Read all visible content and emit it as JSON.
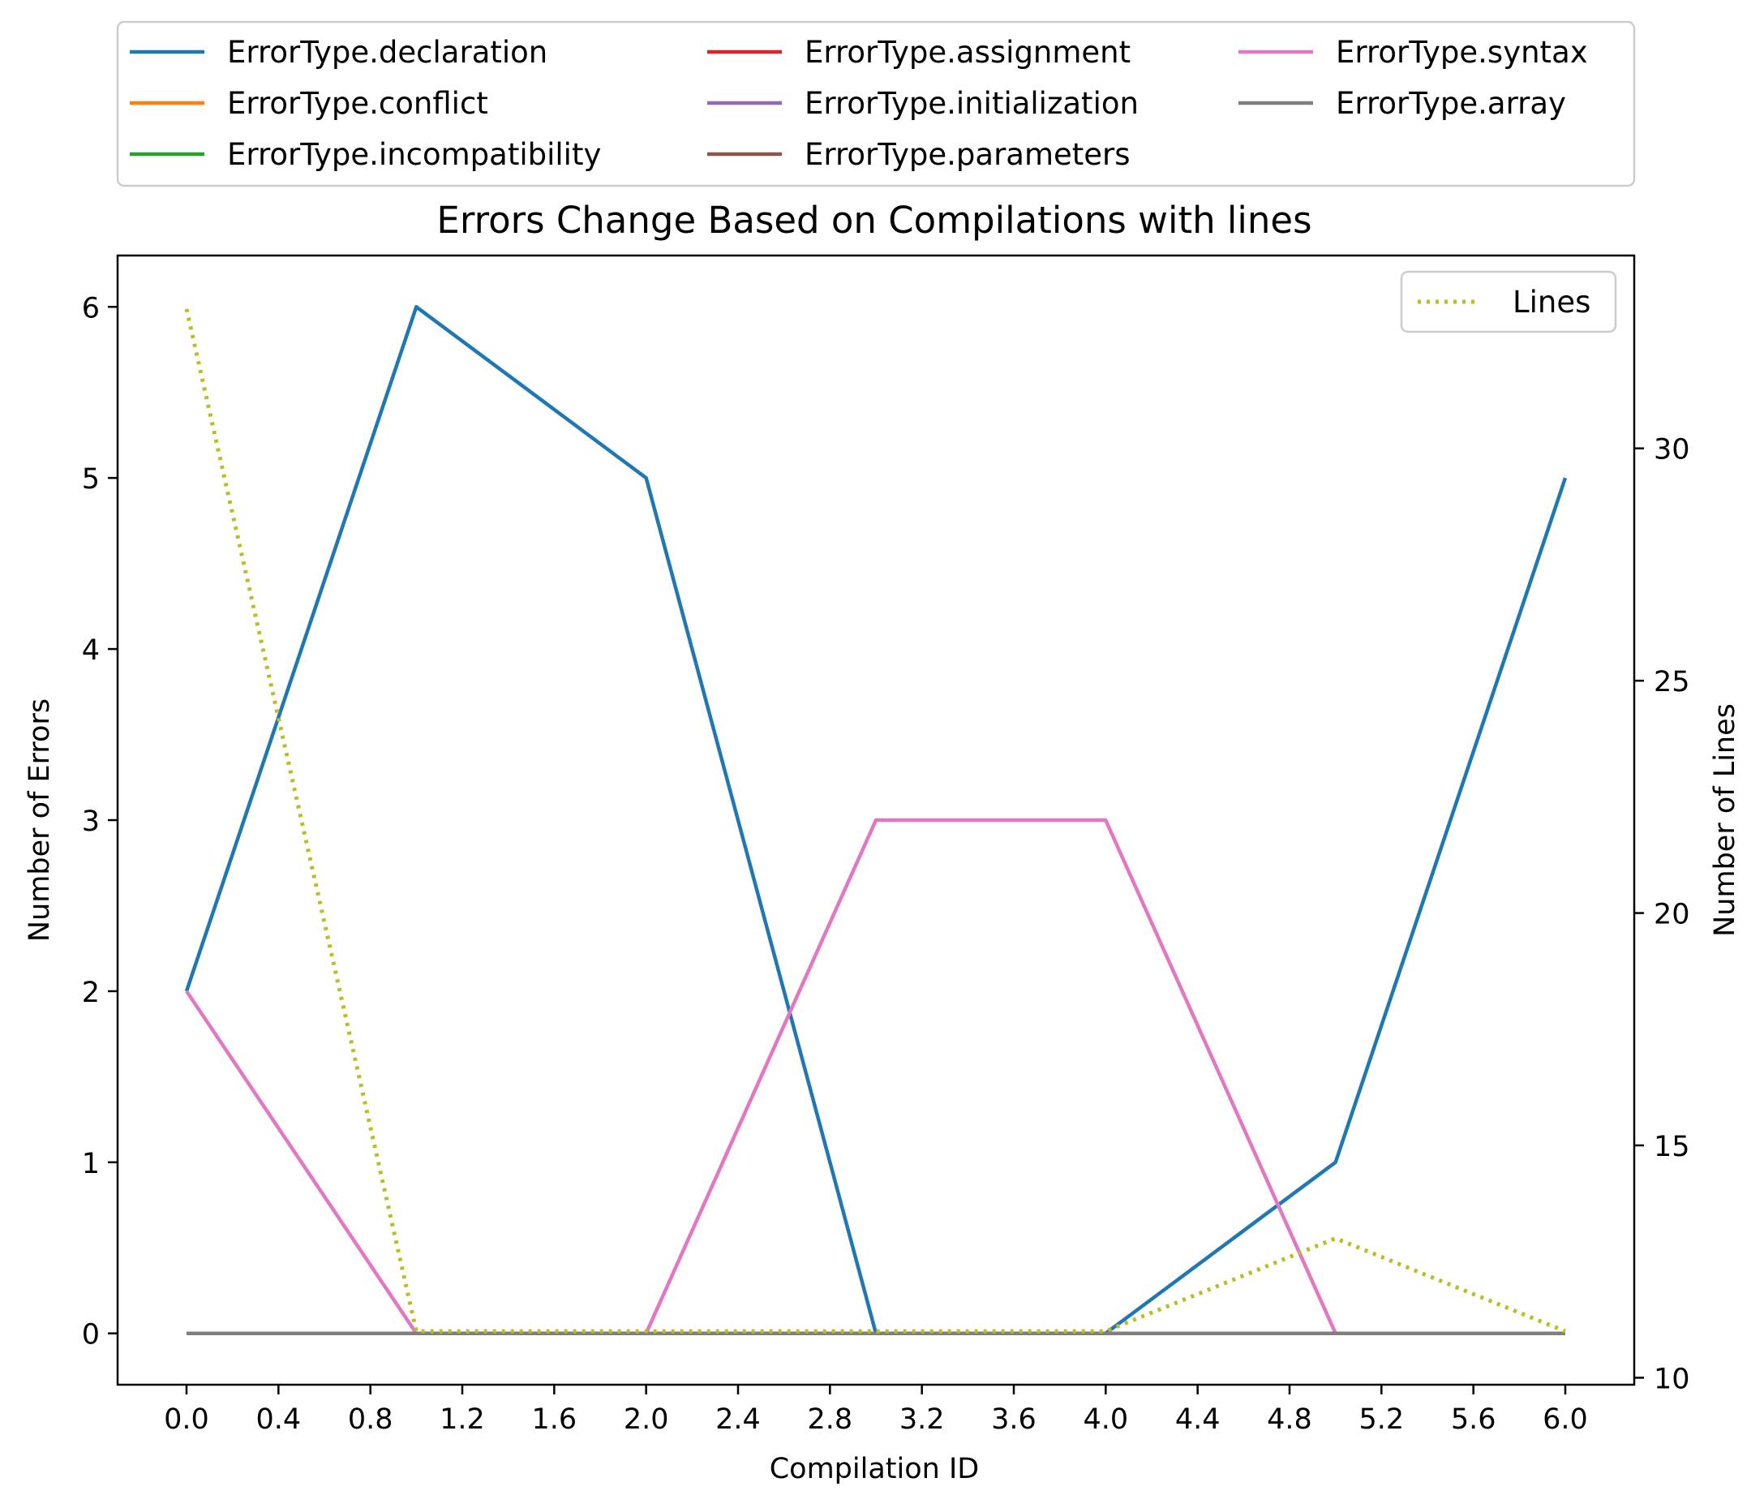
{
  "chart_data": {
    "type": "line",
    "title": "Errors Change Based on Compilations with lines",
    "xlabel": "Compilation ID",
    "ylabel": "Number of Errors",
    "y2label": "Number of Lines",
    "x": [
      0,
      1,
      2,
      3,
      4,
      5,
      6
    ],
    "xlim": [
      -0.3,
      6.3
    ],
    "ylim": [
      -0.3,
      6.3
    ],
    "y2lim": [
      9.85,
      34.15
    ],
    "xticks": [
      "0.0",
      "0.4",
      "0.8",
      "1.2",
      "1.6",
      "2.0",
      "2.4",
      "2.8",
      "3.2",
      "3.6",
      "4.0",
      "4.4",
      "4.8",
      "5.2",
      "5.6",
      "6.0"
    ],
    "yticks": [
      "0",
      "1",
      "2",
      "3",
      "4",
      "5",
      "6"
    ],
    "y2ticks": [
      "10",
      "15",
      "20",
      "25",
      "30"
    ],
    "series": [
      {
        "name": "ErrorType.declaration",
        "color": "#1f77b4",
        "values": [
          2,
          6,
          5,
          0,
          0,
          1,
          5
        ]
      },
      {
        "name": "ErrorType.conflict",
        "color": "#ff7f0e",
        "values": [
          0,
          0,
          0,
          0,
          0,
          0,
          0
        ]
      },
      {
        "name": "ErrorType.incompatibility",
        "color": "#2ca02c",
        "values": [
          0,
          0,
          0,
          0,
          0,
          0,
          0
        ]
      },
      {
        "name": "ErrorType.assignment",
        "color": "#d62728",
        "values": [
          0,
          0,
          0,
          0,
          0,
          0,
          0
        ]
      },
      {
        "name": "ErrorType.initialization",
        "color": "#9467bd",
        "values": [
          0,
          0,
          0,
          0,
          0,
          0,
          0
        ]
      },
      {
        "name": "ErrorType.parameters",
        "color": "#8c564b",
        "values": [
          0,
          0,
          0,
          0,
          0,
          0,
          0
        ]
      },
      {
        "name": "ErrorType.syntax",
        "color": "#e377c2",
        "values": [
          2,
          0,
          0,
          3,
          3,
          0,
          0
        ]
      },
      {
        "name": "ErrorType.array",
        "color": "#7f7f7f",
        "values": [
          0,
          0,
          0,
          0,
          0,
          0,
          0
        ]
      }
    ],
    "secondary_series": {
      "name": "Lines",
      "color": "#bcbd22",
      "style": "dotted",
      "values": [
        33,
        11,
        11,
        11,
        11,
        13,
        11
      ]
    },
    "legend_placement": "above plot",
    "secondary_legend_placement": "top-right",
    "grid": false
  }
}
